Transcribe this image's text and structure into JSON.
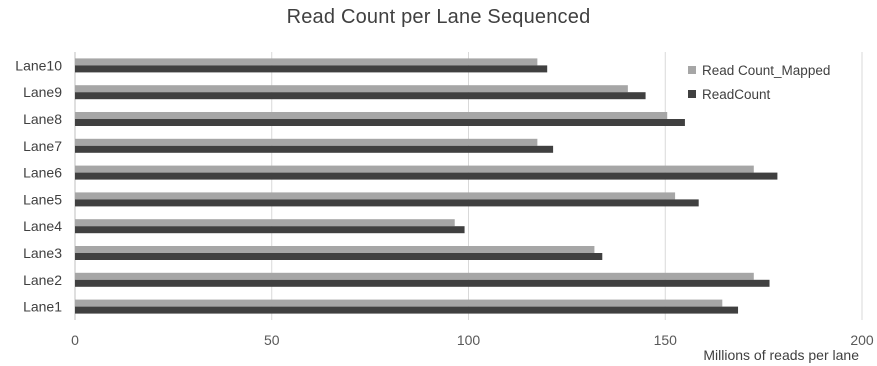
{
  "chart_data": {
    "type": "bar",
    "orientation": "horizontal",
    "title": "Read Count per Lane Sequenced",
    "xlabel": "Millions of reads per lane",
    "ylabel": "",
    "xlim": [
      0,
      200
    ],
    "xticks": [
      0,
      50,
      100,
      150,
      200
    ],
    "grid": true,
    "legend_position": "top-right",
    "categories": [
      "Lane1",
      "Lane2",
      "Lane3",
      "Lane4",
      "Lane5",
      "Lane6",
      "Lane7",
      "Lane8",
      "Lane9",
      "Lane10"
    ],
    "series": [
      {
        "name": "Read Count_Mapped",
        "color": "#a6a6a6",
        "values": [
          164.5,
          172.5,
          132,
          96.5,
          152.5,
          172.5,
          117.5,
          150.5,
          140.5,
          117.5
        ]
      },
      {
        "name": "ReadCount",
        "color": "#404040",
        "values": [
          168.5,
          176.5,
          134,
          99,
          158.5,
          178.5,
          121.5,
          155,
          145,
          120
        ]
      }
    ]
  }
}
